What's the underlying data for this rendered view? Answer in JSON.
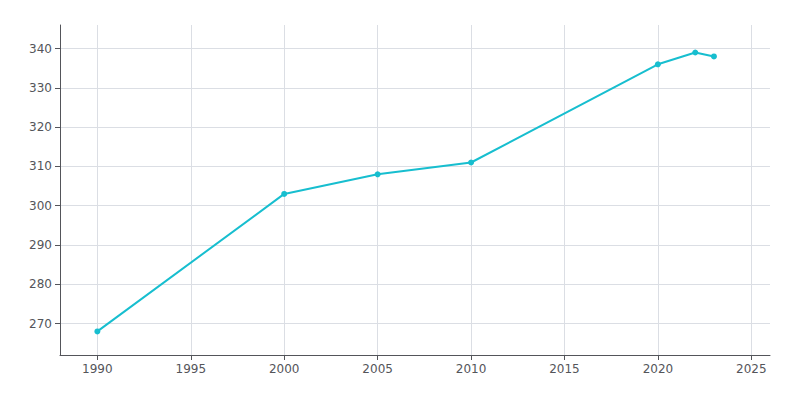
{
  "chart_data": {
    "type": "line",
    "x": [
      1990,
      2000,
      2005,
      2010,
      2020,
      2022,
      2023
    ],
    "values": [
      268,
      303,
      308,
      311,
      336,
      339,
      338
    ],
    "color": "#17becf",
    "marker": "circle",
    "xlim": [
      1988,
      2026
    ],
    "xticks": [
      1990,
      1995,
      2000,
      2005,
      2010,
      2015,
      2020,
      2025
    ],
    "ylim": [
      262,
      346
    ],
    "yticks": [
      270,
      280,
      290,
      300,
      310,
      320,
      330,
      340
    ],
    "grid": true
  }
}
